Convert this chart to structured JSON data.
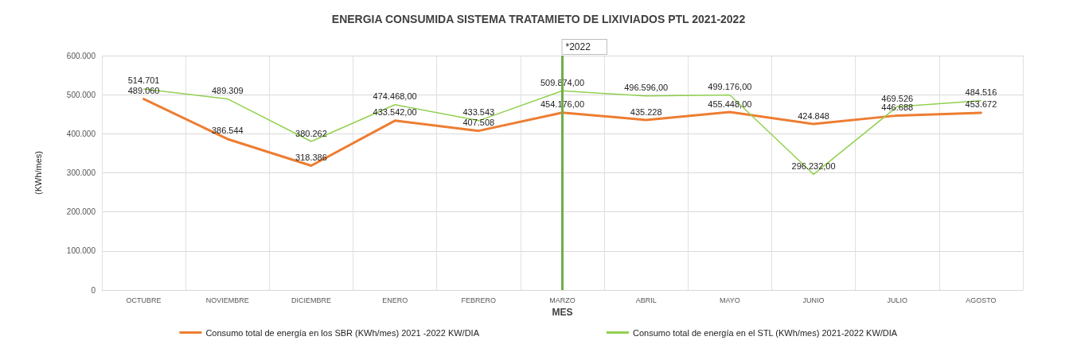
{
  "chart_data": {
    "type": "line",
    "title": "ENERGIA CONSUMIDA SISTEMA TRATAMIETO DE LIXIVIADOS PTL 2021-2022",
    "xlabel": "MES",
    "ylabel": "(KWh/mes)",
    "categories": [
      "OCTUBRE",
      "NOVIEMBRE",
      "DICIEMBRE",
      "ENERO",
      "FEBRERO",
      "MARZO",
      "ABRIL",
      "MAYO",
      "JUNIO",
      "JULIO",
      "AGOSTO"
    ],
    "series": [
      {
        "name": "Consumo total de energía en los SBR (KWh/mes) 2021 -2022 KW/DIA",
        "color": "#ed7d31",
        "values": [
          489060,
          386544,
          318386,
          433542,
          407508,
          454176,
          435228,
          455448,
          424848,
          446688,
          453672
        ],
        "value_labels": [
          "489.060",
          "386.544",
          "318.386",
          "433.542,00",
          "407.508",
          "454.176,00",
          "435.228",
          "455.448,00",
          "424.848",
          "446.688",
          "453.672"
        ]
      },
      {
        "name": "Consumo total de energía en el STL (KWh/mes) 2021-2022 KW/DIA",
        "color": "#92d050",
        "values": [
          514701,
          489309,
          380262,
          474468,
          433543,
          509874,
          496596,
          499176,
          296232,
          469526,
          484516
        ],
        "value_labels": [
          "514.701",
          "489.309",
          "380.262",
          "474.468,00",
          "433.543",
          "509.874,00",
          "496.596,00",
          "499.176,00",
          "296.232,00",
          "469.526",
          "484.516"
        ]
      }
    ],
    "ylim": [
      0,
      600000
    ],
    "yticks": [
      0,
      {
        "value": 100000,
        "label": "100.000"
      },
      {
        "value": 200000,
        "label": "200.000"
      },
      {
        "value": 300000,
        "label": "300.000"
      },
      {
        "value": 400000,
        "label": "400.000"
      },
      {
        "value": 500000,
        "label": "500.000"
      },
      {
        "value": 600000,
        "label": "600.000"
      }
    ],
    "ref_lines": [
      {
        "axis": "x",
        "value": "MARZO",
        "label": "*2022",
        "color": "#70ad47"
      }
    ],
    "grid": true,
    "legend": "bottom",
    "marker": "none",
    "line_style": "solid"
  }
}
